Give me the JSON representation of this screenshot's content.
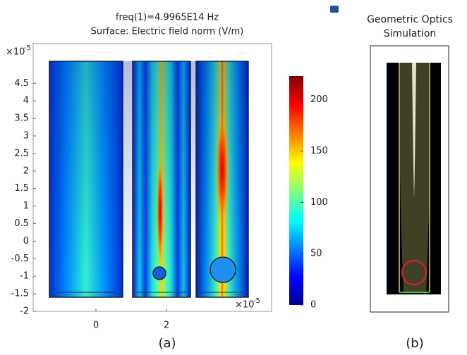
{
  "chart_data": {
    "type": "surface",
    "title": "freq(1)=4.9965E14 Hz",
    "subtitle": "Surface: Electric field norm (V/m)",
    "xlim": [
      -1.78,
      4.98
    ],
    "xticks": [
      0,
      2
    ],
    "ylim": [
      -2,
      5.63
    ],
    "yticks": [
      -2,
      -1.5,
      -1,
      -0.5,
      0,
      0.5,
      1,
      1.5,
      2,
      2.5,
      3,
      3.5,
      4,
      4.5
    ],
    "x_multiplier": {
      "base": "×10",
      "exponent": "-5"
    },
    "y_multiplier": {
      "base": "×10",
      "exponent": "-5"
    },
    "clim": [
      0,
      223
    ],
    "cticks": [
      0,
      50,
      100,
      150,
      200
    ],
    "panel_label": "(a)"
  },
  "side_panel": {
    "title_lines": [
      "Geometric Optics",
      "Simulation"
    ],
    "panel_label": "(b)"
  }
}
